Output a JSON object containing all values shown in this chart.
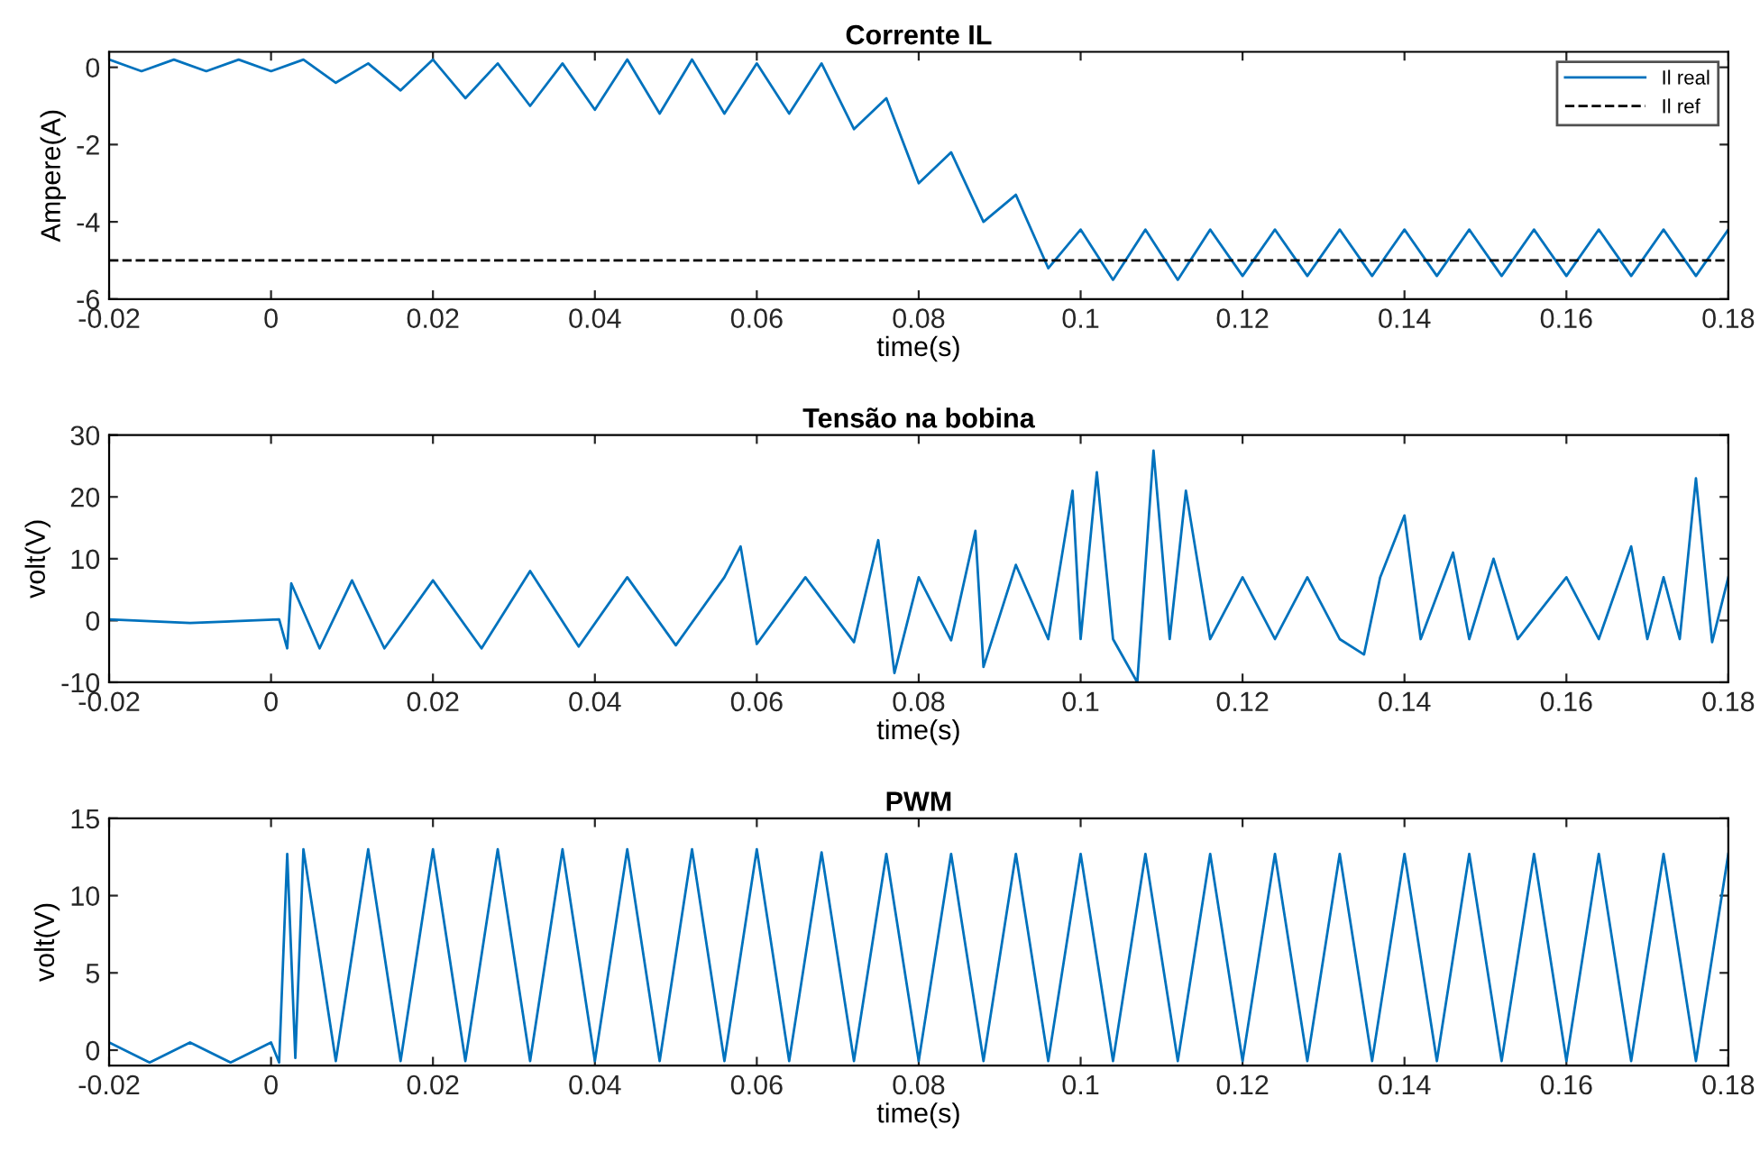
{
  "chart_data": [
    {
      "type": "line",
      "title": "Corrente IL",
      "xlabel": "time(s)",
      "ylabel": "Ampere(A)",
      "xlim": [
        -0.02,
        0.18
      ],
      "ylim": [
        -6,
        0.4
      ],
      "xticks": [
        -0.02,
        0,
        0.02,
        0.04,
        0.06,
        0.08,
        0.1,
        0.12,
        0.14,
        0.16,
        0.18
      ],
      "yticks": [
        -6,
        -4,
        -2,
        0
      ],
      "grid": false,
      "legend": "top right",
      "series": [
        {
          "name": "Il real",
          "color": "#0072bd",
          "line_style": "solid",
          "x": [
            -0.02,
            -0.016,
            -0.012,
            -0.008,
            -0.004,
            0,
            0.004,
            0.008,
            0.012,
            0.016,
            0.02,
            0.024,
            0.028,
            0.032,
            0.036,
            0.04,
            0.044,
            0.048,
            0.052,
            0.056,
            0.06,
            0.064,
            0.068,
            0.072,
            0.076,
            0.08,
            0.084,
            0.088,
            0.092,
            0.096,
            0.1,
            0.104,
            0.108,
            0.112,
            0.116,
            0.12,
            0.124,
            0.128,
            0.132,
            0.136,
            0.14,
            0.144,
            0.148,
            0.152,
            0.156,
            0.16,
            0.164,
            0.168,
            0.172,
            0.176,
            0.18
          ],
          "values": [
            0.2,
            -0.1,
            0.2,
            -0.1,
            0.2,
            -0.1,
            0.2,
            -0.4,
            0.1,
            -0.6,
            0.2,
            -0.8,
            0.1,
            -1.0,
            0.1,
            -1.1,
            0.2,
            -1.2,
            0.2,
            -1.2,
            0.1,
            -1.2,
            0.1,
            -1.6,
            -0.8,
            -3.0,
            -2.2,
            -4.0,
            -3.3,
            -5.2,
            -4.2,
            -5.5,
            -4.2,
            -5.5,
            -4.2,
            -5.4,
            -4.2,
            -5.4,
            -4.2,
            -5.4,
            -4.2,
            -5.4,
            -4.2,
            -5.4,
            -4.2,
            -5.4,
            -4.2,
            -5.4,
            -4.2,
            -5.4,
            -4.2
          ]
        },
        {
          "name": "Il ref",
          "color": "#000000",
          "line_style": "dashed",
          "x": [
            -0.02,
            0.18
          ],
          "values": [
            -5,
            -5
          ]
        }
      ]
    },
    {
      "type": "line",
      "title": "Tensão na bobina",
      "xlabel": "time(s)",
      "ylabel": "volt(V)",
      "xlim": [
        -0.02,
        0.18
      ],
      "ylim": [
        -10,
        30
      ],
      "xticks": [
        -0.02,
        0,
        0.02,
        0.04,
        0.06,
        0.08,
        0.1,
        0.12,
        0.14,
        0.16,
        0.18
      ],
      "yticks": [
        -10,
        0,
        10,
        20,
        30
      ],
      "grid": false,
      "series": [
        {
          "color": "#0072bd",
          "line_style": "solid",
          "x": [
            -0.02,
            -0.01,
            0.001,
            0.002,
            0.0025,
            0.006,
            0.01,
            0.014,
            0.02,
            0.026,
            0.032,
            0.038,
            0.044,
            0.05,
            0.056,
            0.058,
            0.06,
            0.066,
            0.072,
            0.075,
            0.077,
            0.08,
            0.084,
            0.087,
            0.088,
            0.092,
            0.096,
            0.099,
            0.1,
            0.102,
            0.104,
            0.107,
            0.109,
            0.111,
            0.113,
            0.116,
            0.12,
            0.124,
            0.128,
            0.132,
            0.135,
            0.137,
            0.14,
            0.142,
            0.146,
            0.148,
            0.151,
            0.154,
            0.16,
            0.164,
            0.168,
            0.17,
            0.172,
            0.174,
            0.176,
            0.178,
            0.18
          ],
          "values": [
            0.2,
            -0.4,
            0.2,
            -4.5,
            6,
            -4.5,
            6.5,
            -4.5,
            6.5,
            -4.5,
            8,
            -4.2,
            7,
            -4,
            7,
            12,
            -3.8,
            7,
            -3.5,
            13,
            -8.5,
            7,
            -3.2,
            14.5,
            -7.5,
            9,
            -3,
            21,
            -3,
            24,
            -3,
            -10,
            27.5,
            -3,
            21,
            -3,
            7,
            -3,
            7,
            -3,
            -5.5,
            7,
            17,
            -3,
            11,
            -3,
            10,
            -3,
            7,
            -3,
            12,
            -3,
            7,
            -3,
            23,
            -3.5,
            7
          ]
        }
      ]
    },
    {
      "type": "line",
      "title": "PWM",
      "xlabel": "time(s)",
      "ylabel": "volt(V)",
      "xlim": [
        -0.02,
        0.18
      ],
      "ylim": [
        -1,
        15
      ],
      "xticks": [
        -0.02,
        0,
        0.02,
        0.04,
        0.06,
        0.08,
        0.1,
        0.12,
        0.14,
        0.16,
        0.18
      ],
      "yticks": [
        0,
        5,
        10,
        15
      ],
      "grid": false,
      "series": [
        {
          "color": "#0072bd",
          "line_style": "solid",
          "x": [
            -0.02,
            -0.015,
            -0.01,
            -0.005,
            0,
            0.001,
            0.002,
            0.003,
            0.004,
            0.008,
            0.012,
            0.016,
            0.02,
            0.024,
            0.028,
            0.032,
            0.036,
            0.04,
            0.044,
            0.048,
            0.052,
            0.056,
            0.06,
            0.064,
            0.068,
            0.072,
            0.076,
            0.08,
            0.084,
            0.088,
            0.092,
            0.096,
            0.1,
            0.104,
            0.108,
            0.112,
            0.116,
            0.12,
            0.124,
            0.128,
            0.132,
            0.136,
            0.14,
            0.144,
            0.148,
            0.152,
            0.156,
            0.16,
            0.164,
            0.168,
            0.172,
            0.176,
            0.18
          ],
          "values": [
            0.5,
            -0.8,
            0.5,
            -0.8,
            0.5,
            -0.8,
            12.7,
            -0.5,
            13,
            -0.7,
            13,
            -0.7,
            13,
            -0.7,
            13,
            -0.7,
            13,
            -0.7,
            13,
            -0.7,
            13,
            -0.7,
            13,
            -0.7,
            12.8,
            -0.7,
            12.7,
            -0.7,
            12.7,
            -0.7,
            12.7,
            -0.7,
            12.7,
            -0.7,
            12.7,
            -0.7,
            12.7,
            -0.7,
            12.7,
            -0.7,
            12.7,
            -0.7,
            12.7,
            -0.7,
            12.7,
            -0.7,
            12.7,
            -0.7,
            12.7,
            -0.7,
            12.7,
            -0.7,
            12.7
          ]
        }
      ]
    }
  ]
}
